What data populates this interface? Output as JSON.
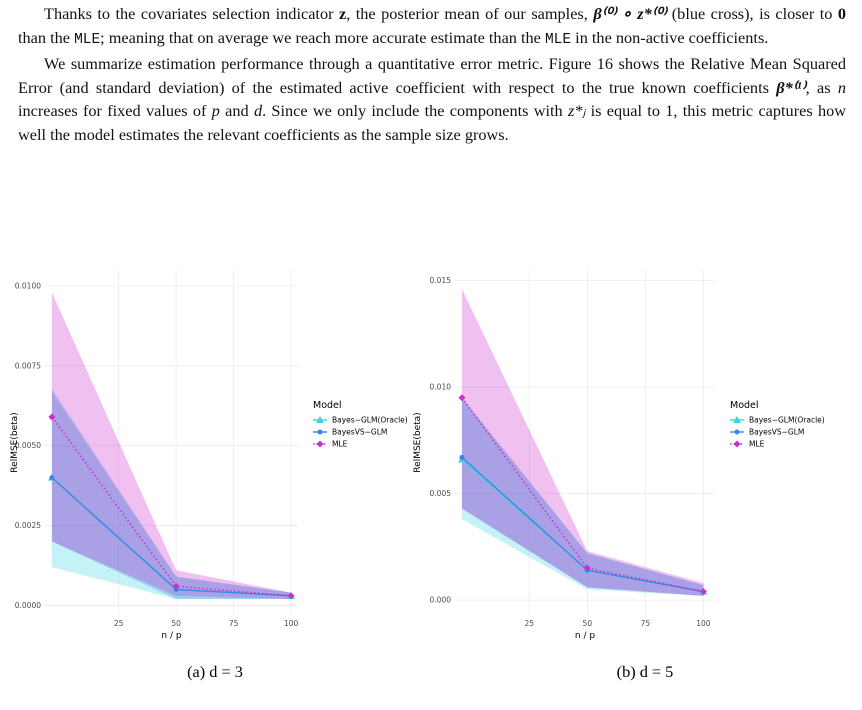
{
  "paragraphs": [
    [
      "Thanks to the covariates selection indicator ",
      "z",
      ", the posterior mean of our samples, ",
      "β⁽⁰⁾ ∘ z*⁽⁰⁾",
      " (blue cross), is closer to ",
      "0",
      " than the ",
      "MLE",
      "; meaning that on average we reach more accurate estimate than the ",
      "MLE",
      " in the non-active coefficients."
    ],
    [
      "We summarize estimation performance through a quantitative error metric. Figure 16 shows the Relative Mean Squared Error (and standard deviation) of the estimated active coefficient with respect to the true known coefficients ",
      "β*⁽¹⁾",
      ", as ",
      "n",
      " increases for fixed values of ",
      "p",
      " and ",
      "d",
      ". Since we only include the components with ",
      "z*ⱼ",
      " is equal to 1, this metric captures how well the model estimates the relevant coefficients as the sample size grows."
    ]
  ],
  "captions": [
    "(a) d = 3",
    "(b) d = 5"
  ],
  "chart_data": [
    {
      "type": "line",
      "x_label": "n / p",
      "y_label": "RelMSE(beta)",
      "legend_title": "Model",
      "legend": "right",
      "grid": true,
      "x": [
        -4,
        50,
        100
      ],
      "xlim": [
        -7,
        103
      ],
      "xticks": [
        25,
        50,
        75,
        100
      ],
      "ylim": [
        -0.0003,
        0.0105
      ],
      "yticks": [
        {
          "value": 0,
          "label": "0.0000"
        },
        {
          "value": 0.0025,
          "label": "0.0025"
        },
        {
          "value": 0.005,
          "label": "0.0050"
        },
        {
          "value": 0.0075,
          "label": "0.0075"
        },
        {
          "value": 0.01,
          "label": "0.0100"
        }
      ],
      "series": [
        {
          "name": "Bayes−GLM(Oracle)",
          "color": "#3fd3e0",
          "marker": "triangle",
          "linestyle": "solid",
          "values": [
            0.004,
            0.0005,
            0.0003
          ],
          "lower": [
            0.0012,
            0.0002,
            0.0002
          ],
          "upper": [
            0.0068,
            0.0009,
            0.0004
          ]
        },
        {
          "name": "BayesVS−GLM",
          "color": "#3a86e4",
          "marker": "circle",
          "linestyle": "solid",
          "values": [
            0.004,
            0.0005,
            0.0003
          ],
          "lower": [
            0.002,
            0.0002,
            0.0002
          ],
          "upper": [
            0.0067,
            0.0009,
            0.0004
          ]
        },
        {
          "name": "MLE",
          "color": "#cc2fcc",
          "marker": "diamond",
          "linestyle": "dotted",
          "values": [
            0.0059,
            0.0006,
            0.0003
          ],
          "lower": [
            0.002,
            0.0003,
            0.0002
          ],
          "upper": [
            0.0098,
            0.0011,
            0.0004
          ]
        }
      ]
    },
    {
      "type": "line",
      "x_label": "n / p",
      "y_label": "RelMSE(beta)",
      "legend_title": "Model",
      "legend": "right",
      "grid": true,
      "x": [
        -4,
        50,
        100
      ],
      "xlim": [
        -7,
        105
      ],
      "xticks": [
        25,
        50,
        75,
        100
      ],
      "ylim": [
        -0.0007,
        0.0155
      ],
      "yticks": [
        {
          "value": 0,
          "label": "0.000"
        },
        {
          "value": 0.005,
          "label": "0.005"
        },
        {
          "value": 0.01,
          "label": "0.010"
        },
        {
          "value": 0.015,
          "label": "0.015"
        }
      ],
      "series": [
        {
          "name": "Bayes−GLM(Oracle)",
          "color": "#3fd3e0",
          "marker": "triangle",
          "linestyle": "solid",
          "values": [
            0.0066,
            0.0014,
            0.0004
          ],
          "lower": [
            0.0038,
            0.0005,
            0.0002
          ],
          "upper": [
            0.0095,
            0.0022,
            0.0007
          ]
        },
        {
          "name": "BayesVS−GLM",
          "color": "#3a86e4",
          "marker": "circle",
          "linestyle": "solid",
          "values": [
            0.0067,
            0.0014,
            0.0004
          ],
          "lower": [
            0.0043,
            0.0006,
            0.0002
          ],
          "upper": [
            0.0095,
            0.0022,
            0.0007
          ]
        },
        {
          "name": "MLE",
          "color": "#cc2fcc",
          "marker": "diamond",
          "linestyle": "dotted",
          "values": [
            0.0095,
            0.0015,
            0.0004
          ],
          "lower": [
            0.0043,
            0.0006,
            0.0002
          ],
          "upper": [
            0.0146,
            0.0023,
            0.0008
          ]
        }
      ]
    }
  ]
}
